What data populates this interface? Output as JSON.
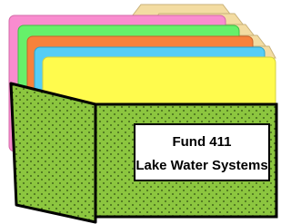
{
  "label": {
    "lines": [
      "Fund 411",
      "Lake Water Systems"
    ]
  }
}
